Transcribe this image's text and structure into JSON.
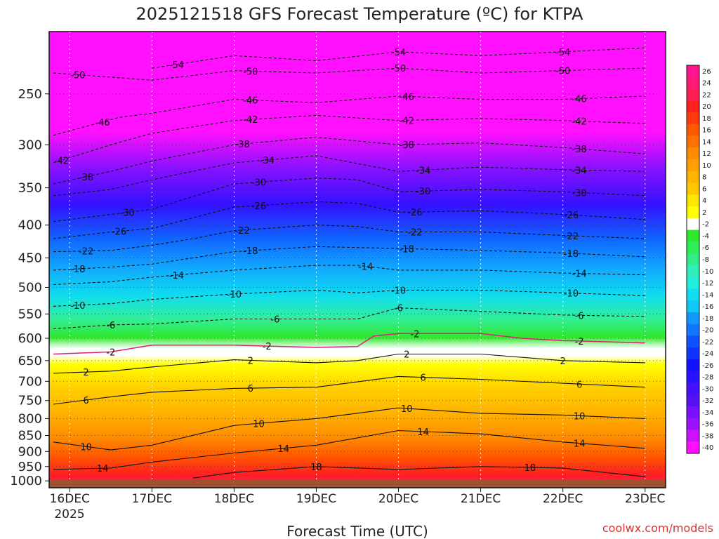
{
  "chart_data": {
    "type": "heatmap",
    "title": "2025121518 GFS Forecast Temperature (ºC) for KTPA",
    "xlabel": "Forecast Time (UTC)",
    "ylabel": "",
    "credit": "coolwx.com/models",
    "x_tick_labels": [
      "16DEC",
      "17DEC",
      "18DEC",
      "19DEC",
      "20DEC",
      "21DEC",
      "22DEC",
      "23DEC"
    ],
    "x_tick_sublabel": "2025",
    "x_days": [
      0,
      1,
      2,
      3,
      4,
      5,
      6,
      7
    ],
    "xlim": [
      -0.25,
      7.25
    ],
    "y_tick_labels": [
      "250",
      "300",
      "350",
      "400",
      "450",
      "500",
      "550",
      "600",
      "650",
      "700",
      "750",
      "800",
      "850",
      "900",
      "950",
      "1000"
    ],
    "y_ticks_hpa": [
      250,
      300,
      350,
      400,
      450,
      500,
      550,
      600,
      650,
      700,
      750,
      800,
      850,
      900,
      950,
      1000
    ],
    "ylim_hpa": [
      1025,
      200
    ],
    "y_scale": "log",
    "ground_color": "#a0522d",
    "colorbar": {
      "labels": [
        "26",
        "24",
        "22",
        "20",
        "18",
        "16",
        "14",
        "12",
        "10",
        "8",
        "6",
        "4",
        "2",
        "-2",
        "-4",
        "-6",
        "-8",
        "-10",
        "-12",
        "-14",
        "-16",
        "-18",
        "-20",
        "-22",
        "-24",
        "-26",
        "-28",
        "-30",
        "-32",
        "-34",
        "-36",
        "-38",
        "-40"
      ],
      "colors": [
        "#ff1493",
        "#ff1a75",
        "#ff1e50",
        "#ff2020",
        "#ff3a10",
        "#ff5a00",
        "#ff7200",
        "#ff8c00",
        "#ffa000",
        "#ffb400",
        "#ffc800",
        "#ffe600",
        "#ffff00",
        "#ffffff",
        "#2ee82e",
        "#30ee55",
        "#33ee88",
        "#33eeb8",
        "#22eedd",
        "#11ddee",
        "#11c8f4",
        "#1199ff",
        "#1177ff",
        "#1150ff",
        "#1133ff",
        "#1111ff",
        "#2a11ff",
        "#4411ff",
        "#5511ee",
        "#7711ff",
        "#9911ff",
        "#cc11ff",
        "#ff11ff"
      ]
    },
    "series": [
      {
        "level": "-54",
        "points": [
          [
            1.0,
            228
          ],
          [
            2.0,
            218
          ],
          [
            3.0,
            222
          ],
          [
            4.0,
            215
          ],
          [
            5.0,
            218
          ],
          [
            6.0,
            215
          ],
          [
            7.0,
            212
          ]
        ],
        "label_days": [
          1.3,
          4.0,
          6.0
        ]
      },
      {
        "level": "-50",
        "points": [
          [
            -0.2,
            232
          ],
          [
            1.0,
            238
          ],
          [
            2.0,
            230
          ],
          [
            3.0,
            232
          ],
          [
            4.0,
            228
          ],
          [
            5.0,
            232
          ],
          [
            6.0,
            230
          ],
          [
            7.0,
            228
          ]
        ],
        "label_days": [
          0.1,
          2.2,
          4.0,
          6.0
        ]
      },
      {
        "level": "-46",
        "points": [
          [
            -0.2,
            290
          ],
          [
            0.6,
            272
          ],
          [
            1.0,
            268
          ],
          [
            2.0,
            255
          ],
          [
            3.0,
            258
          ],
          [
            4.0,
            252
          ],
          [
            5.0,
            255
          ],
          [
            6.0,
            255
          ],
          [
            7.0,
            252
          ]
        ],
        "label_days": [
          0.4,
          2.2,
          4.1,
          6.2
        ]
      },
      {
        "level": "-42",
        "points": [
          [
            -0.2,
            320
          ],
          [
            0.5,
            300
          ],
          [
            1.0,
            288
          ],
          [
            2.0,
            275
          ],
          [
            3.0,
            270
          ],
          [
            4.0,
            275
          ],
          [
            5.0,
            273
          ],
          [
            6.0,
            275
          ],
          [
            7.0,
            278
          ]
        ],
        "label_days": [
          -0.1,
          2.2,
          4.1,
          6.2
        ]
      },
      {
        "level": "-38",
        "points": [
          [
            -0.2,
            345
          ],
          [
            0.5,
            330
          ],
          [
            1.0,
            318
          ],
          [
            2.0,
            300
          ],
          [
            3.0,
            292
          ],
          [
            4.0,
            300
          ],
          [
            5.0,
            298
          ],
          [
            6.0,
            303
          ],
          [
            7.0,
            310
          ]
        ],
        "label_days": [
          0.2,
          2.1,
          4.1,
          6.2
        ]
      },
      {
        "level": "-34",
        "points": [
          [
            -0.2,
            360
          ],
          [
            0.5,
            352
          ],
          [
            1.0,
            340
          ],
          [
            2.0,
            320
          ],
          [
            3.0,
            312
          ],
          [
            4.0,
            330
          ],
          [
            5.0,
            325
          ],
          [
            6.0,
            328
          ],
          [
            7.0,
            330
          ]
        ],
        "label_days": [
          2.4,
          4.3,
          6.2
        ]
      },
      {
        "level": "-30",
        "points": [
          [
            -0.2,
            395
          ],
          [
            0.5,
            385
          ],
          [
            1.0,
            378
          ],
          [
            2.0,
            345
          ],
          [
            3.0,
            338
          ],
          [
            3.5,
            340
          ],
          [
            4.0,
            355
          ],
          [
            5.0,
            352
          ],
          [
            6.0,
            355
          ],
          [
            7.0,
            360
          ]
        ],
        "label_days": [
          0.7,
          2.3,
          4.3,
          6.2
        ]
      },
      {
        "level": "-26",
        "points": [
          [
            -0.2,
            420
          ],
          [
            0.5,
            410
          ],
          [
            1.0,
            405
          ],
          [
            2.0,
            375
          ],
          [
            3.0,
            368
          ],
          [
            3.5,
            370
          ],
          [
            4.0,
            382
          ],
          [
            5.0,
            380
          ],
          [
            6.0,
            385
          ],
          [
            7.0,
            392
          ]
        ],
        "label_days": [
          0.6,
          2.3,
          4.2,
          6.1
        ]
      },
      {
        "level": "-22",
        "points": [
          [
            -0.2,
            440
          ],
          [
            0.5,
            438
          ],
          [
            1.0,
            430
          ],
          [
            1.5,
            420
          ],
          [
            2.0,
            408
          ],
          [
            3.0,
            400
          ],
          [
            3.5,
            402
          ],
          [
            4.0,
            410
          ],
          [
            5.0,
            410
          ],
          [
            6.0,
            415
          ],
          [
            7.0,
            420
          ]
        ],
        "label_days": [
          0.2,
          2.1,
          4.2,
          6.1
        ]
      },
      {
        "level": "-18",
        "points": [
          [
            -0.2,
            470
          ],
          [
            0.5,
            465
          ],
          [
            1.0,
            460
          ],
          [
            2.0,
            440
          ],
          [
            3.0,
            432
          ],
          [
            4.0,
            435
          ],
          [
            5.0,
            438
          ],
          [
            6.0,
            442
          ],
          [
            7.0,
            448
          ]
        ],
        "label_days": [
          0.1,
          2.2,
          4.1,
          6.1
        ]
      },
      {
        "level": "-14",
        "points": [
          [
            -0.2,
            495
          ],
          [
            0.5,
            490
          ],
          [
            1.0,
            482
          ],
          [
            2.0,
            470
          ],
          [
            3.0,
            462
          ],
          [
            3.5,
            462
          ],
          [
            4.0,
            470
          ],
          [
            5.0,
            470
          ],
          [
            6.0,
            475
          ],
          [
            7.0,
            478
          ]
        ],
        "label_days": [
          1.3,
          3.6,
          6.2
        ]
      },
      {
        "level": "-10",
        "points": [
          [
            -0.2,
            535
          ],
          [
            0.5,
            530
          ],
          [
            1.0,
            522
          ],
          [
            2.0,
            512
          ],
          [
            3.0,
            505
          ],
          [
            3.5,
            510
          ],
          [
            4.0,
            505
          ],
          [
            5.0,
            505
          ],
          [
            6.0,
            510
          ],
          [
            7.0,
            515
          ]
        ],
        "label_days": [
          0.1,
          2.0,
          4.0,
          6.1
        ]
      },
      {
        "level": "-6",
        "points": [
          [
            -0.2,
            580
          ],
          [
            0.5,
            572
          ],
          [
            1.0,
            570
          ],
          [
            2.0,
            560
          ],
          [
            3.0,
            560
          ],
          [
            3.5,
            560
          ],
          [
            4.0,
            538
          ],
          [
            5.0,
            545
          ],
          [
            6.0,
            552
          ],
          [
            7.0,
            555
          ]
        ],
        "label_days": [
          0.5,
          2.5,
          4.0,
          6.2
        ]
      },
      {
        "level": "-2",
        "points": [
          [
            -0.2,
            635
          ],
          [
            0.5,
            630
          ],
          [
            1.0,
            615
          ],
          [
            2.0,
            615
          ],
          [
            3.0,
            620
          ],
          [
            3.5,
            618
          ],
          [
            3.7,
            595
          ],
          [
            4.0,
            590
          ],
          [
            5.0,
            590
          ],
          [
            5.5,
            600
          ],
          [
            6.0,
            605
          ],
          [
            7.0,
            610
          ]
        ],
        "label_days": [
          0.5,
          2.4,
          4.2,
          6.2
        ]
      },
      {
        "level": "2",
        "points": [
          [
            -0.2,
            680
          ],
          [
            0.5,
            675
          ],
          [
            1.0,
            665
          ],
          [
            2.0,
            648
          ],
          [
            3.0,
            655
          ],
          [
            3.5,
            650
          ],
          [
            4.0,
            635
          ],
          [
            5.0,
            635
          ],
          [
            6.0,
            650
          ],
          [
            7.0,
            655
          ]
        ],
        "label_days": [
          0.2,
          2.2,
          4.1,
          6.0
        ]
      },
      {
        "level": "6",
        "points": [
          [
            -0.2,
            760
          ],
          [
            0.5,
            740
          ],
          [
            1.0,
            728
          ],
          [
            2.0,
            718
          ],
          [
            3.0,
            715
          ],
          [
            4.0,
            688
          ],
          [
            5.0,
            695
          ],
          [
            6.0,
            705
          ],
          [
            7.0,
            715
          ]
        ],
        "label_days": [
          0.2,
          2.2,
          4.3,
          6.2
        ]
      },
      {
        "level": "10",
        "points": [
          [
            -0.2,
            870
          ],
          [
            0.5,
            895
          ],
          [
            1.0,
            880
          ],
          [
            2.0,
            820
          ],
          [
            3.0,
            800
          ],
          [
            4.0,
            770
          ],
          [
            5.0,
            785
          ],
          [
            6.0,
            790
          ],
          [
            7.0,
            800
          ]
        ],
        "label_days": [
          0.2,
          2.3,
          4.1,
          6.2
        ]
      },
      {
        "level": "14",
        "points": [
          [
            -0.2,
            960
          ],
          [
            0.5,
            955
          ],
          [
            1.0,
            935
          ],
          [
            2.0,
            905
          ],
          [
            3.0,
            880
          ],
          [
            4.0,
            835
          ],
          [
            5.0,
            845
          ],
          [
            6.0,
            870
          ],
          [
            7.0,
            890
          ]
        ],
        "label_days": [
          0.4,
          2.6,
          4.3,
          6.2
        ]
      },
      {
        "level": "18",
        "points": [
          [
            1.5,
            990
          ],
          [
            2.0,
            970
          ],
          [
            3.0,
            950
          ],
          [
            4.0,
            960
          ],
          [
            5.0,
            950
          ],
          [
            6.0,
            955
          ],
          [
            7.0,
            985
          ]
        ],
        "label_days": [
          3.0,
          5.6
        ]
      }
    ]
  }
}
